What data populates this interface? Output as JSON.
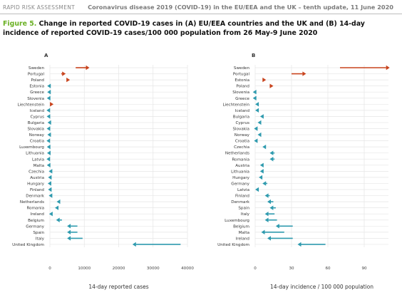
{
  "header": {
    "left": "RAPID RISK ASSESSMENT",
    "right": "Coronavirus disease 2019 (COVID-19) in the EU/EEA and the UK – tenth update, 11 June 2020"
  },
  "caption": {
    "figure_label": "Figure 5.",
    "text": "Change in reported COVID-19 cases in (A) EU/EEA countries and the UK and (B) 14-day incidence of reported COVID-19 cases/100 000 population from 26 May-9 June 2020"
  },
  "colors": {
    "increase": "#c8431d",
    "decrease": "#2e9aae",
    "grid": "#e6e6e6",
    "text": "#333333"
  },
  "chart_data": [
    {
      "panel": "A",
      "type": "dumbbell-arrow",
      "xlabel": "14-day reported cases",
      "xlim": [
        0,
        40000
      ],
      "xticks": [
        0,
        10000,
        20000,
        30000,
        40000
      ],
      "xtick_labels": [
        "0",
        "10000",
        "20000",
        "30000",
        "40000"
      ],
      "grid": true,
      "rows": [
        {
          "country": "Sweden",
          "start": 7500,
          "end": 11500
        },
        {
          "country": "Portugal",
          "start": 3300,
          "end": 4600
        },
        {
          "country": "Poland",
          "start": 4800,
          "end": 5300
        },
        {
          "country": "Estonia",
          "start": 250,
          "end": 150
        },
        {
          "country": "Greece",
          "start": 250,
          "end": 150
        },
        {
          "country": "Slovenia",
          "start": 150,
          "end": 100
        },
        {
          "country": "Liechtenstein",
          "start": 20,
          "end": 20
        },
        {
          "country": "Iceland",
          "start": 50,
          "end": 40
        },
        {
          "country": "Cyprus",
          "start": 100,
          "end": 60
        },
        {
          "country": "Bulgaria",
          "start": 350,
          "end": 300
        },
        {
          "country": "Slovakia",
          "start": 100,
          "end": 60
        },
        {
          "country": "Norway",
          "start": 300,
          "end": 250
        },
        {
          "country": "Croatia",
          "start": 50,
          "end": 20
        },
        {
          "country": "Luxembourg",
          "start": 150,
          "end": 100
        },
        {
          "country": "Lithuania",
          "start": 200,
          "end": 150
        },
        {
          "country": "Latvia",
          "start": 50,
          "end": 30
        },
        {
          "country": "Malta",
          "start": 150,
          "end": 80
        },
        {
          "country": "Czechia",
          "start": 700,
          "end": 550
        },
        {
          "country": "Austria",
          "start": 500,
          "end": 400
        },
        {
          "country": "Hungary",
          "start": 400,
          "end": 300
        },
        {
          "country": "Finland",
          "start": 500,
          "end": 350
        },
        {
          "country": "Denmark",
          "start": 700,
          "end": 500
        },
        {
          "country": "Netherlands",
          "start": 3000,
          "end": 2000
        },
        {
          "country": "Romania",
          "start": 2500,
          "end": 2000
        },
        {
          "country": "Ireland",
          "start": 800,
          "end": 500
        },
        {
          "country": "Belgium",
          "start": 3500,
          "end": 1800
        },
        {
          "country": "Germany",
          "start": 8000,
          "end": 5000
        },
        {
          "country": "Spain",
          "start": 8000,
          "end": 5000
        },
        {
          "country": "Italy",
          "start": 9500,
          "end": 5000
        },
        {
          "country": "United Kingdom",
          "start": 38000,
          "end": 24000
        }
      ]
    },
    {
      "panel": "B",
      "type": "dumbbell-arrow",
      "xlabel": "14-day incidence / 100 000 population",
      "xlim": [
        0,
        110
      ],
      "xticks": [
        0,
        30,
        60,
        90
      ],
      "xtick_labels": [
        "0",
        "30",
        "60",
        "90"
      ],
      "grid": true,
      "rows": [
        {
          "country": "Sweden",
          "start": 70,
          "end": 111
        },
        {
          "country": "Portugal",
          "start": 30,
          "end": 42
        },
        {
          "country": "Estonia",
          "start": 6,
          "end": 9
        },
        {
          "country": "Poland",
          "start": 12,
          "end": 15
        },
        {
          "country": "Slovenia",
          "start": 1,
          "end": 0.5
        },
        {
          "country": "Greece",
          "start": 1,
          "end": 0.5
        },
        {
          "country": "Liechtenstein",
          "start": 3,
          "end": 1
        },
        {
          "country": "Iceland",
          "start": 3,
          "end": 1
        },
        {
          "country": "Bulgaria",
          "start": 7,
          "end": 5
        },
        {
          "country": "Cyprus",
          "start": 5,
          "end": 3
        },
        {
          "country": "Slovakia",
          "start": 2,
          "end": 1
        },
        {
          "country": "Norway",
          "start": 5,
          "end": 3
        },
        {
          "country": "Croatia",
          "start": 2,
          "end": 1
        },
        {
          "country": "Czechia",
          "start": 9,
          "end": 6
        },
        {
          "country": "Netherlands",
          "start": 16,
          "end": 12
        },
        {
          "country": "Romania",
          "start": 16,
          "end": 12
        },
        {
          "country": "Austria",
          "start": 7,
          "end": 4
        },
        {
          "country": "Lithuania",
          "start": 7,
          "end": 4
        },
        {
          "country": "Hungary",
          "start": 6,
          "end": 3
        },
        {
          "country": "Germany",
          "start": 10,
          "end": 6
        },
        {
          "country": "Latvia",
          "start": 3,
          "end": 1
        },
        {
          "country": "Finland",
          "start": 12,
          "end": 8
        },
        {
          "country": "Denmark",
          "start": 15,
          "end": 10
        },
        {
          "country": "Spain",
          "start": 17,
          "end": 12
        },
        {
          "country": "Italy",
          "start": 16,
          "end": 8
        },
        {
          "country": "Luxembourg",
          "start": 18,
          "end": 8
        },
        {
          "country": "Belgium",
          "start": 31,
          "end": 17
        },
        {
          "country": "Malta",
          "start": 24,
          "end": 5
        },
        {
          "country": "Ireland",
          "start": 31,
          "end": 10
        },
        {
          "country": "United Kingdom",
          "start": 58,
          "end": 35
        }
      ]
    }
  ]
}
